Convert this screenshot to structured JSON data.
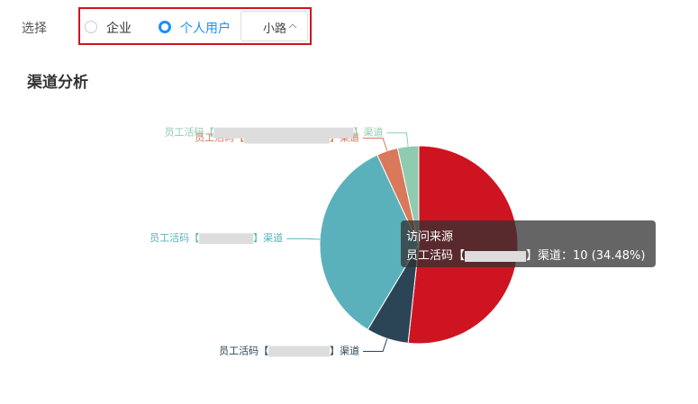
{
  "ui": {
    "filter_label": "选择",
    "options": [
      "企业",
      "个人用户"
    ],
    "select_value": "小路",
    "section_title": "渠道分析"
  },
  "chart_data": {
    "type": "pie",
    "series_name": "访问来源",
    "categories": [
      null,
      [
        "员工活码【",
        "】渠道"
      ],
      [
        "员工活码【",
        "】渠道"
      ],
      [
        "员工活码【",
        "】渠道"
      ],
      [
        "员工活码【",
        "】渠道"
      ]
    ],
    "values": [
      15,
      2,
      10,
      1,
      1
    ],
    "colors": [
      "#cf1421",
      "#2b4556",
      "#5ab1bb",
      "#d9785b",
      "#8fcbb0"
    ],
    "tooltip": {
      "title": "访问来源",
      "prefix": "员工活码【",
      "suffix": "】渠道：",
      "value_label": "10 (34.48%)"
    }
  }
}
